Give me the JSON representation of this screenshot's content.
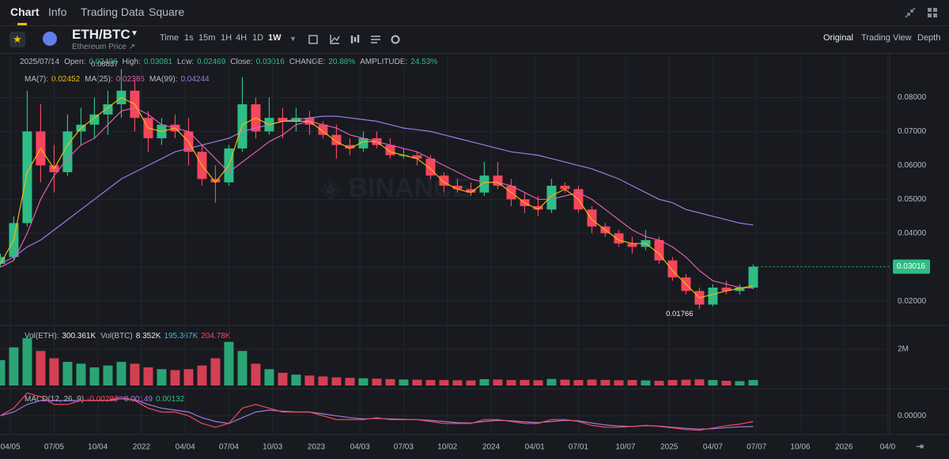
{
  "tabs": [
    "Chart",
    "Info",
    "Trading Data",
    "Square"
  ],
  "pair": "ETH/BTC",
  "pair_subtitle": "Ethereum Price ↗",
  "intervals": [
    "Time",
    "1s",
    "15m",
    "1H",
    "4H",
    "1D",
    "1W"
  ],
  "views": [
    "Original",
    "Trading View",
    "Depth"
  ],
  "info": {
    "date": "2025/07/14",
    "items": [
      {
        "label": "Open:",
        "value": "0.02496"
      },
      {
        "label": "High:",
        "value": "0.03081"
      },
      {
        "label": "Low:",
        "value": "0.02469"
      },
      {
        "label": "Close:",
        "value": "0.03016"
      },
      {
        "label": "CHANGE:",
        "value": "20.88%"
      },
      {
        "label": "AMPLITUDE:",
        "value": "24.53%"
      }
    ]
  },
  "ma_legend": [
    {
      "label": "MA(7):",
      "value": "0.02452",
      "color": "#f0b90b"
    },
    {
      "label": "MA(25):",
      "value": "0.02385",
      "color": "#e45cb0"
    },
    {
      "label": "MA(99):",
      "value": "0.04244",
      "color": "#9e7ce0"
    }
  ],
  "vol_legend": [
    {
      "label": "Vol(ETH):",
      "value": "300.361K",
      "color": "#eaecef"
    },
    {
      "label": "Vol(BTC)",
      "value": "8.352K",
      "color": "#eaecef"
    },
    {
      "label": "",
      "value": "195.367K",
      "color": "#48b5d8"
    },
    {
      "label": "",
      "value": "204.78K",
      "color": "#f6465d"
    }
  ],
  "macd_legend": [
    {
      "label": "MACD(12, 26, 9)",
      "value": "-0.00282",
      "color": "#f6465d"
    },
    {
      "label": "",
      "value": "-0.00149",
      "color": "#9e7ce0"
    },
    {
      "label": "",
      "value": "0.00132",
      "color": "#2ebd85"
    }
  ],
  "chart_data": {
    "type": "candlestick",
    "up_color": "#2ebd85",
    "down_color": "#f6465d",
    "grid": true,
    "x": [
      0,
      4,
      8,
      12,
      16,
      20,
      24,
      28,
      32,
      36,
      40,
      44,
      48,
      52,
      56,
      60,
      64,
      68,
      72,
      76,
      80,
      84,
      88,
      92,
      96,
      100,
      104,
      108,
      112,
      116,
      120,
      124,
      128,
      132,
      136,
      140,
      144,
      148,
      152,
      156,
      160,
      164,
      168,
      172,
      176,
      180,
      184,
      188,
      192,
      196,
      200,
      204,
      208,
      212,
      216,
      220,
      224
    ],
    "open": [
      0.031,
      0.033,
      0.043,
      0.07,
      0.06,
      0.058,
      0.07,
      0.072,
      0.075,
      0.078,
      0.082,
      0.074,
      0.068,
      0.072,
      0.07,
      0.064,
      0.056,
      0.055,
      0.065,
      0.078,
      0.07,
      0.074,
      0.073,
      0.074,
      0.072,
      0.069,
      0.066,
      0.065,
      0.068,
      0.066,
      0.063,
      0.063,
      0.062,
      0.057,
      0.054,
      0.053,
      0.052,
      0.057,
      0.054,
      0.05,
      0.048,
      0.047,
      0.054,
      0.053,
      0.047,
      0.042,
      0.04,
      0.037,
      0.036,
      0.038,
      0.032,
      0.027,
      0.023,
      0.019,
      0.024,
      0.023,
      0.024
    ],
    "high": [
      0.034,
      0.045,
      0.082,
      0.078,
      0.066,
      0.075,
      0.077,
      0.08,
      0.082,
      0.08837,
      0.085,
      0.076,
      0.074,
      0.075,
      0.074,
      0.066,
      0.06,
      0.066,
      0.086,
      0.08,
      0.08,
      0.077,
      0.077,
      0.076,
      0.073,
      0.072,
      0.068,
      0.07,
      0.07,
      0.068,
      0.065,
      0.064,
      0.063,
      0.058,
      0.056,
      0.055,
      0.061,
      0.061,
      0.056,
      0.052,
      0.051,
      0.056,
      0.055,
      0.054,
      0.048,
      0.043,
      0.041,
      0.039,
      0.041,
      0.039,
      0.033,
      0.028,
      0.024,
      0.025,
      0.026,
      0.025,
      0.03081
    ],
    "low": [
      0.03,
      0.032,
      0.042,
      0.055,
      0.052,
      0.057,
      0.066,
      0.068,
      0.069,
      0.074,
      0.07,
      0.064,
      0.066,
      0.068,
      0.06,
      0.054,
      0.049,
      0.054,
      0.064,
      0.068,
      0.069,
      0.068,
      0.07,
      0.069,
      0.068,
      0.062,
      0.063,
      0.064,
      0.065,
      0.062,
      0.062,
      0.06,
      0.056,
      0.052,
      0.052,
      0.051,
      0.051,
      0.053,
      0.048,
      0.046,
      0.045,
      0.046,
      0.052,
      0.046,
      0.04,
      0.039,
      0.036,
      0.034,
      0.035,
      0.031,
      0.026,
      0.022,
      0.01766,
      0.0185,
      0.022,
      0.022,
      0.0235
    ],
    "close": [
      0.033,
      0.043,
      0.07,
      0.06,
      0.058,
      0.07,
      0.072,
      0.075,
      0.078,
      0.082,
      0.074,
      0.068,
      0.072,
      0.07,
      0.064,
      0.056,
      0.055,
      0.065,
      0.078,
      0.07,
      0.074,
      0.073,
      0.074,
      0.072,
      0.069,
      0.066,
      0.065,
      0.068,
      0.066,
      0.063,
      0.063,
      0.062,
      0.057,
      0.054,
      0.053,
      0.052,
      0.057,
      0.054,
      0.05,
      0.048,
      0.047,
      0.054,
      0.053,
      0.047,
      0.042,
      0.04,
      0.037,
      0.036,
      0.038,
      0.032,
      0.027,
      0.023,
      0.019,
      0.024,
      0.023,
      0.024,
      0.03016
    ],
    "ma7": [
      0.031,
      0.038,
      0.058,
      0.065,
      0.059,
      0.066,
      0.071,
      0.074,
      0.077,
      0.08,
      0.078,
      0.071,
      0.07,
      0.071,
      0.067,
      0.06,
      0.055,
      0.06,
      0.072,
      0.074,
      0.072,
      0.073,
      0.073,
      0.073,
      0.07,
      0.067,
      0.065,
      0.067,
      0.067,
      0.064,
      0.063,
      0.062,
      0.059,
      0.055,
      0.053,
      0.052,
      0.055,
      0.055,
      0.052,
      0.049,
      0.047,
      0.051,
      0.053,
      0.05,
      0.044,
      0.041,
      0.038,
      0.037,
      0.037,
      0.034,
      0.029,
      0.025,
      0.021,
      0.022,
      0.023,
      0.0238,
      0.02452
    ],
    "ma25": [
      0.03,
      0.032,
      0.04,
      0.05,
      0.057,
      0.062,
      0.066,
      0.068,
      0.072,
      0.076,
      0.077,
      0.075,
      0.072,
      0.071,
      0.07,
      0.066,
      0.062,
      0.058,
      0.061,
      0.064,
      0.067,
      0.069,
      0.072,
      0.073,
      0.072,
      0.071,
      0.069,
      0.068,
      0.067,
      0.066,
      0.065,
      0.064,
      0.062,
      0.06,
      0.058,
      0.056,
      0.055,
      0.055,
      0.054,
      0.052,
      0.05,
      0.05,
      0.051,
      0.052,
      0.05,
      0.047,
      0.044,
      0.041,
      0.039,
      0.038,
      0.036,
      0.033,
      0.029,
      0.026,
      0.025,
      0.024,
      0.02385
    ],
    "ma99": [
      0.031,
      0.033,
      0.036,
      0.038,
      0.041,
      0.044,
      0.047,
      0.05,
      0.053,
      0.056,
      0.058,
      0.06,
      0.062,
      0.064,
      0.065,
      0.066,
      0.067,
      0.068,
      0.07,
      0.071,
      0.072,
      0.073,
      0.0735,
      0.074,
      0.0745,
      0.0745,
      0.074,
      0.0735,
      0.073,
      0.072,
      0.071,
      0.0705,
      0.07,
      0.069,
      0.068,
      0.067,
      0.066,
      0.065,
      0.064,
      0.0635,
      0.063,
      0.062,
      0.061,
      0.06,
      0.059,
      0.0575,
      0.056,
      0.054,
      0.052,
      0.05,
      0.049,
      0.047,
      0.046,
      0.045,
      0.044,
      0.043,
      0.04244
    ],
    "xlim": [
      -0.1,
      264.6
    ],
    "xticks": [
      {
        "value": 3,
        "label": "04/05"
      },
      {
        "value": 16,
        "label": "07/05"
      },
      {
        "value": 29,
        "label": "10/04"
      },
      {
        "value": 42,
        "label": "2022"
      },
      {
        "value": 55,
        "label": "04/04"
      },
      {
        "value": 68,
        "label": "07/04"
      },
      {
        "value": 81,
        "label": "10/03"
      },
      {
        "value": 94,
        "label": "2023"
      },
      {
        "value": 107,
        "label": "04/03"
      },
      {
        "value": 120,
        "label": "07/03"
      },
      {
        "value": 133,
        "label": "10/02"
      },
      {
        "value": 146,
        "label": "2024"
      },
      {
        "value": 159,
        "label": "04/01"
      },
      {
        "value": 172,
        "label": "07/01"
      },
      {
        "value": 186,
        "label": "10/07"
      },
      {
        "value": 199,
        "label": "2025"
      },
      {
        "value": 212,
        "label": "04/07"
      },
      {
        "value": 225,
        "label": "07/07"
      },
      {
        "value": 238,
        "label": "10/06"
      },
      {
        "value": 251,
        "label": "2026"
      },
      {
        "value": 264,
        "label": "04/0"
      }
    ],
    "ylim": [
      0.0133,
      0.0929
    ],
    "yticks": [
      {
        "value": 0.02,
        "label": "0.02000"
      },
      {
        "value": 0.03,
        "label": "0.03000"
      },
      {
        "value": 0.04,
        "label": "0.04000"
      },
      {
        "value": 0.05,
        "label": "0.05000"
      },
      {
        "value": 0.06,
        "label": "0.06000"
      },
      {
        "value": 0.07,
        "label": "0.07000"
      },
      {
        "value": 0.08,
        "label": "0.08000"
      }
    ],
    "last_price": 0.03016,
    "high_mark": 0.08837,
    "low_mark": 0.01766,
    "volume": {
      "values": [
        1400000,
        2100000,
        2600000,
        1900000,
        1500000,
        1300000,
        1200000,
        1000000,
        1100000,
        1300000,
        1200000,
        1000000,
        900000,
        850000,
        900000,
        1100000,
        1500000,
        2400000,
        1900000,
        1200000,
        900000,
        700000,
        600000,
        550000,
        500000,
        450000,
        420000,
        400000,
        380000,
        350000,
        330000,
        320000,
        300000,
        300000,
        290000,
        280000,
        350000,
        330000,
        300000,
        310000,
        290000,
        360000,
        320000,
        300000,
        330000,
        310000,
        290000,
        300000,
        280000,
        260000,
        300000,
        320000,
        340000,
        300000,
        260000,
        240000,
        300361
      ],
      "ylim": [
        0,
        3170000
      ],
      "yticks": [
        {
          "value": 2000000,
          "label": "2M"
        }
      ]
    },
    "macd": {
      "dif": [
        0,
        0.002,
        0.006,
        0.005,
        0.003,
        0.003,
        0.004,
        0.004,
        0.004,
        0.005,
        0.004,
        0.002,
        0.001,
        0.001,
        0,
        -0.002,
        -0.003,
        -0.002,
        0.002,
        0.003,
        0.002,
        0.001,
        0.001,
        0.001,
        0,
        -0.001,
        -0.001,
        -0.001,
        -0.0005,
        -0.001,
        -0.001,
        -0.001,
        -0.0015,
        -0.002,
        -0.002,
        -0.002,
        -0.001,
        -0.001,
        -0.0015,
        -0.002,
        -0.002,
        -0.001,
        -0.001,
        -0.0015,
        -0.0025,
        -0.003,
        -0.003,
        -0.0028,
        -0.0025,
        -0.0028,
        -0.0032,
        -0.0036,
        -0.0038,
        -0.0032,
        -0.0026,
        -0.0022,
        -0.00149
      ],
      "dea": [
        0,
        0.001,
        0.003,
        0.004,
        0.004,
        0.004,
        0.004,
        0.004,
        0.004,
        0.0045,
        0.0042,
        0.003,
        0.002,
        0.0015,
        0.001,
        -0.0005,
        -0.0015,
        -0.002,
        -0.0005,
        0.001,
        0.0015,
        0.0012,
        0.001,
        0.001,
        0.0005,
        0,
        -0.0005,
        -0.0008,
        -0.0007,
        -0.0008,
        -0.0009,
        -0.001,
        -0.0012,
        -0.0015,
        -0.0018,
        -0.0019,
        -0.0015,
        -0.0012,
        -0.0013,
        -0.0016,
        -0.0018,
        -0.0015,
        -0.0012,
        -0.0013,
        -0.0019,
        -0.0024,
        -0.0027,
        -0.0028,
        -0.0026,
        -0.0027,
        -0.003,
        -0.0033,
        -0.0035,
        -0.0034,
        -0.0031,
        -0.0029,
        -0.00282
      ],
      "ylim": [
        -0.0045,
        0.0065
      ],
      "yticks": [
        {
          "value": 0,
          "label": "0.00000"
        }
      ]
    }
  }
}
